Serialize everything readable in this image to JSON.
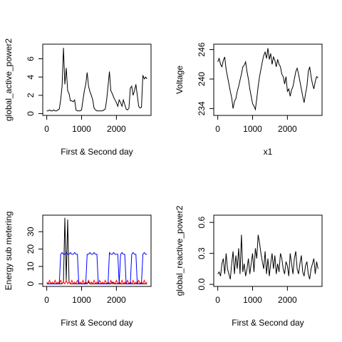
{
  "chart_data": [
    {
      "type": "line",
      "ylabel": "global_active_power2",
      "xlabel": "First & Second day",
      "color": "#000000",
      "x": [
        0,
        40,
        80,
        120,
        160,
        200,
        240,
        280,
        320,
        360,
        400,
        440,
        480,
        520,
        560,
        600,
        640,
        680,
        720,
        760,
        800,
        840,
        880,
        920,
        960,
        1000,
        1040,
        1080,
        1120,
        1160,
        1200,
        1240,
        1280,
        1320,
        1360,
        1400,
        1440,
        1480,
        1520,
        1560,
        1600,
        1640,
        1680,
        1720,
        1760,
        1800,
        1840,
        1880,
        1920,
        1960,
        2000,
        2040,
        2080,
        2120,
        2160,
        2200,
        2240,
        2280,
        2320,
        2360,
        2400,
        2440,
        2480,
        2520,
        2560,
        2600,
        2640,
        2680,
        2720,
        2760,
        2800,
        2840,
        2880
      ],
      "values": [
        0.3,
        0.3,
        0.4,
        0.3,
        0.3,
        0.4,
        0.3,
        0.3,
        0.4,
        0.5,
        1.5,
        3.0,
        7.2,
        3.2,
        5.0,
        2.5,
        2.2,
        1.4,
        1.4,
        1.3,
        1.5,
        0.4,
        0.3,
        0.3,
        0.3,
        0.4,
        1.5,
        2.5,
        3.2,
        4.5,
        3.0,
        2.4,
        2.0,
        1.5,
        0.6,
        0.4,
        0.3,
        0.3,
        0.3,
        0.3,
        0.3,
        0.4,
        0.5,
        1.5,
        3.0,
        4.6,
        2.5,
        2.2,
        1.8,
        1.5,
        1.2,
        0.8,
        1.5,
        1.2,
        0.8,
        1.5,
        1.0,
        0.5,
        0.4,
        0.6,
        2.8,
        3.0,
        2.0,
        2.5,
        3.2,
        2.0,
        0.8,
        0.6,
        0.7,
        4.2,
        3.8,
        4.0,
        3.8
      ],
      "xlim": [
        -115,
        2995
      ],
      "xticks": [
        0,
        1000,
        2000
      ],
      "ylim": [
        -0.2,
        7.6
      ],
      "yticks": [
        0,
        2,
        4,
        6
      ]
    },
    {
      "type": "line",
      "ylabel": "Voltage",
      "xlabel": "x1",
      "color": "#000000",
      "x": [
        0,
        40,
        80,
        120,
        160,
        200,
        240,
        280,
        320,
        360,
        400,
        440,
        480,
        520,
        560,
        600,
        640,
        680,
        720,
        760,
        800,
        840,
        880,
        920,
        960,
        1000,
        1040,
        1080,
        1120,
        1160,
        1200,
        1240,
        1280,
        1320,
        1360,
        1400,
        1440,
        1480,
        1520,
        1560,
        1600,
        1640,
        1680,
        1720,
        1760,
        1800,
        1840,
        1880,
        1920,
        1960,
        2000,
        2040,
        2080,
        2120,
        2160,
        2200,
        2240,
        2280,
        2320,
        2360,
        2400,
        2440,
        2480,
        2520,
        2560,
        2600,
        2640,
        2680,
        2720,
        2760,
        2800,
        2840,
        2880
      ],
      "values": [
        243.5,
        244.2,
        243.0,
        242.5,
        243.8,
        244.5,
        242.0,
        240.5,
        239.0,
        237.5,
        236.2,
        234.0,
        235.5,
        236.0,
        237.5,
        238.5,
        239.8,
        241.0,
        242.5,
        242.8,
        243.5,
        241.5,
        240.0,
        238.0,
        236.5,
        235.0,
        234.5,
        233.8,
        236.0,
        238.5,
        240.5,
        242.0,
        243.5,
        244.8,
        245.5,
        244.2,
        246.3,
        244.0,
        245.2,
        243.0,
        244.5,
        243.8,
        242.5,
        244.0,
        243.0,
        242.5,
        241.0,
        240.5,
        239.0,
        240.5,
        237.5,
        238.0,
        236.5,
        237.8,
        238.5,
        240.0,
        241.5,
        242.2,
        241.0,
        239.5,
        238.0,
        236.5,
        235.2,
        237.0,
        238.5,
        241.5,
        242.5,
        240.5,
        239.0,
        238.0,
        239.5,
        240.5,
        240.2
      ],
      "xlim": [
        -115,
        2995
      ],
      "xticks": [
        0,
        1000,
        2000
      ],
      "ylim": [
        232.6,
        247.1
      ],
      "yticks": [
        234,
        240,
        246
      ]
    },
    {
      "type": "line",
      "ylabel": "Energy sub metering",
      "xlabel": "First & Second day",
      "x": [
        0,
        40,
        80,
        120,
        160,
        200,
        240,
        280,
        320,
        360,
        400,
        440,
        480,
        520,
        560,
        600,
        640,
        680,
        720,
        760,
        800,
        840,
        880,
        920,
        960,
        1000,
        1040,
        1080,
        1120,
        1160,
        1200,
        1240,
        1280,
        1320,
        1360,
        1400,
        1440,
        1480,
        1520,
        1560,
        1600,
        1640,
        1680,
        1720,
        1760,
        1800,
        1840,
        1880,
        1920,
        1960,
        2000,
        2040,
        2080,
        2120,
        2160,
        2200,
        2240,
        2280,
        2320,
        2360,
        2400,
        2440,
        2480,
        2520,
        2560,
        2600,
        2640,
        2680,
        2720,
        2760,
        2800,
        2840,
        2880
      ],
      "series": [
        {
          "color": "#000000",
          "values": [
            0,
            0,
            0,
            0,
            0,
            0,
            0,
            0,
            0,
            0,
            0,
            0,
            1,
            38,
            2,
            37,
            1,
            0,
            0,
            0,
            0,
            0,
            0,
            0,
            0,
            0,
            0,
            0,
            0,
            0,
            1,
            0,
            0,
            0,
            0,
            0,
            0,
            0,
            0,
            0,
            0,
            0,
            0,
            0,
            0,
            0,
            0,
            1,
            0,
            0,
            0,
            0,
            0,
            0,
            0,
            0,
            0,
            0,
            0,
            0,
            0,
            0,
            0,
            0,
            0,
            0,
            0,
            0,
            0,
            0,
            0,
            0,
            0
          ]
        },
        {
          "color": "#ff0000",
          "values": [
            1,
            0,
            2,
            0,
            1,
            0,
            2,
            0,
            1,
            0,
            2,
            0,
            1,
            0,
            2,
            0,
            1,
            0,
            2,
            0,
            1,
            0,
            2,
            0,
            1,
            0,
            2,
            0,
            1,
            0,
            2,
            0,
            1,
            0,
            2,
            0,
            1,
            0,
            2,
            0,
            1,
            0,
            2,
            0,
            1,
            0,
            2,
            0,
            1,
            0,
            2,
            0,
            1,
            0,
            2,
            0,
            1,
            0,
            2,
            0,
            1,
            0,
            2,
            0,
            1,
            0,
            2,
            0,
            1,
            0,
            2,
            0,
            1
          ]
        },
        {
          "color": "#0000ff",
          "values": [
            0,
            0,
            0,
            0,
            0,
            0,
            0,
            0,
            0,
            0,
            17,
            18,
            17,
            17,
            18,
            17,
            17,
            18,
            17,
            17,
            18,
            17,
            17,
            0,
            0,
            0,
            0,
            0,
            0,
            17,
            17,
            18,
            17,
            17,
            18,
            17,
            17,
            0,
            0,
            0,
            0,
            0,
            0,
            0,
            0,
            18,
            17,
            17,
            18,
            17,
            17,
            17,
            0,
            17,
            18,
            17,
            17,
            0,
            0,
            0,
            0,
            17,
            18,
            17,
            17,
            0,
            0,
            0,
            0,
            17,
            18,
            17,
            17
          ]
        }
      ],
      "xlim": [
        -115,
        2995
      ],
      "xticks": [
        0,
        1000,
        2000
      ],
      "ylim": [
        -1.5,
        39.5
      ],
      "yticks": [
        0,
        10,
        20,
        30
      ]
    },
    {
      "type": "line",
      "ylabel": "global_reactive_power2",
      "xlabel": "First & Second day",
      "color": "#000000",
      "x": [
        0,
        40,
        80,
        120,
        160,
        200,
        240,
        280,
        320,
        360,
        400,
        440,
        480,
        520,
        560,
        600,
        640,
        680,
        720,
        760,
        800,
        840,
        880,
        920,
        960,
        1000,
        1040,
        1080,
        1120,
        1160,
        1200,
        1240,
        1280,
        1320,
        1360,
        1400,
        1440,
        1480,
        1520,
        1560,
        1600,
        1640,
        1680,
        1720,
        1760,
        1800,
        1840,
        1880,
        1920,
        1960,
        2000,
        2040,
        2080,
        2120,
        2160,
        2200,
        2240,
        2280,
        2320,
        2360,
        2400,
        2440,
        2480,
        2520,
        2560,
        2600,
        2640,
        2680,
        2720,
        2760,
        2800,
        2840,
        2880
      ],
      "values": [
        0.1,
        0.12,
        0.08,
        0.2,
        0.25,
        0.1,
        0.3,
        0.15,
        0.1,
        0.05,
        0.2,
        0.32,
        0.1,
        0.28,
        0.15,
        0.35,
        0.1,
        0.48,
        0.12,
        0.2,
        0.08,
        0.15,
        0.25,
        0.1,
        0.2,
        0.3,
        0.12,
        0.35,
        0.25,
        0.48,
        0.4,
        0.3,
        0.22,
        0.15,
        0.32,
        0.1,
        0.25,
        0.08,
        0.2,
        0.3,
        0.15,
        0.28,
        0.1,
        0.2,
        0.12,
        0.3,
        0.25,
        0.15,
        0.1,
        0.22,
        0.18,
        0.08,
        0.3,
        0.2,
        0.1,
        0.25,
        0.32,
        0.15,
        0.1,
        0.2,
        0.28,
        0.12,
        0.08,
        0.18,
        0.22,
        0.1,
        0.05,
        0.15,
        0.2,
        0.25,
        0.1,
        0.22,
        0.15
      ],
      "xlim": [
        -115,
        2995
      ],
      "xticks": [
        0,
        1000,
        2000
      ],
      "ylim": [
        -0.02,
        0.67
      ],
      "yticks": [
        {
          "value": 0,
          "label": "0.0"
        },
        {
          "value": 0.3,
          "label": "0.3"
        },
        {
          "value": 0.6,
          "label": "0.6"
        }
      ]
    }
  ]
}
